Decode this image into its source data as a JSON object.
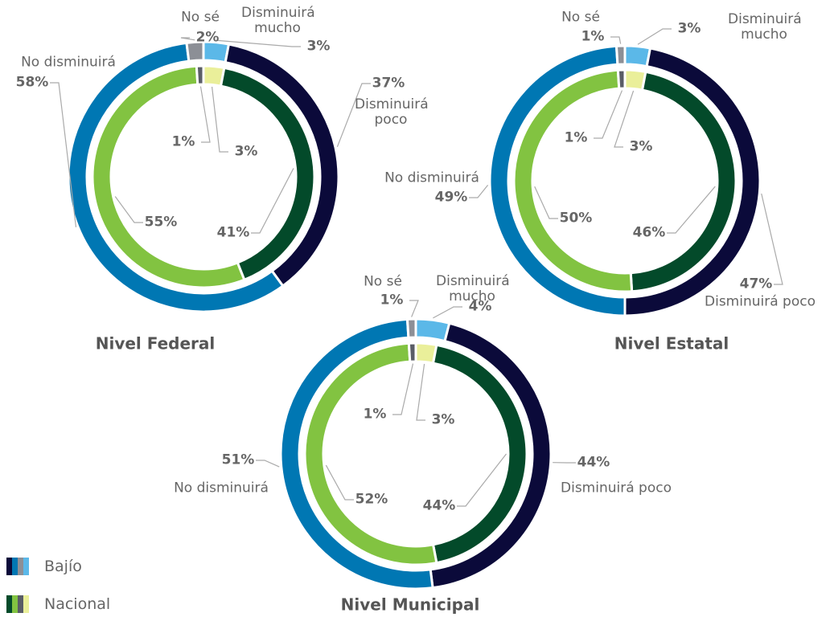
{
  "chart_data": [
    {
      "type": "pie",
      "title": "Nivel Federal",
      "categories": [
        "Disminuirá mucho",
        "Disminuirá poco",
        "No disminuirá",
        "No sé"
      ],
      "series": [
        {
          "colors": [
            "#5bb8e8",
            "#0b0a3a",
            "#0077b3",
            "#8c8f96"
          ],
          "values": [
            3,
            37,
            58,
            2
          ],
          "value_labels": [
            "3%",
            "37%",
            "58%",
            "2%"
          ]
        },
        {
          "colors": [
            "#eaef9a",
            "#034a2a",
            "#82c341",
            "#5a5d66"
          ],
          "values": [
            3,
            41,
            55,
            1
          ],
          "value_labels": [
            "3%",
            "41%",
            "55%",
            "1%"
          ]
        }
      ]
    },
    {
      "type": "pie",
      "title": "Nivel Estatal",
      "categories": [
        "Disminuirá mucho",
        "Disminuirá poco",
        "No disminuirá",
        "No sé"
      ],
      "series": [
        {
          "colors": [
            "#5bb8e8",
            "#0b0a3a",
            "#0077b3",
            "#8c8f96"
          ],
          "values": [
            3,
            47,
            49,
            1
          ],
          "value_labels": [
            "3%",
            "47%",
            "49%",
            "1%"
          ]
        },
        {
          "colors": [
            "#eaef9a",
            "#034a2a",
            "#82c341",
            "#5a5d66"
          ],
          "values": [
            3,
            46,
            50,
            1
          ],
          "value_labels": [
            "3%",
            "46%",
            "50%",
            "1%"
          ]
        }
      ]
    },
    {
      "type": "pie",
      "title": "Nivel Municipal",
      "categories": [
        "Disminuirá mucho",
        "Disminuirá poco",
        "No disminuirá",
        "No sé"
      ],
      "series": [
        {
          "colors": [
            "#5bb8e8",
            "#0b0a3a",
            "#0077b3",
            "#8c8f96"
          ],
          "values": [
            4,
            44,
            51,
            1
          ],
          "value_labels": [
            "4%",
            "44%",
            "51%",
            "1%"
          ]
        },
        {
          "colors": [
            "#eaef9a",
            "#034a2a",
            "#82c341",
            "#5a5d66"
          ],
          "values": [
            3,
            44,
            52,
            1
          ],
          "value_labels": [
            "3%",
            "44%",
            "52%",
            "1%"
          ]
        }
      ]
    }
  ],
  "legend": [
    {
      "name": "Bajío",
      "colors": [
        "#0b0a3a",
        "#0077b3",
        "#8c8f96",
        "#5bb8e8"
      ]
    },
    {
      "name": "Nacional",
      "colors": [
        "#034a2a",
        "#82c341",
        "#5a5d66",
        "#eaef9a"
      ]
    }
  ]
}
